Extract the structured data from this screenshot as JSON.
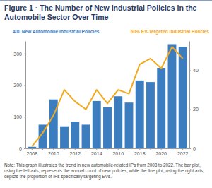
{
  "chart_data": {
    "type": "bar",
    "title": "Figure 1 · The Number of New Industrial Policies in the Automobile Sector Over Time",
    "note": "Note: This graph illustrates the trend in new automobile-related IPs from 2008 to 2022. The bar plot, using the left axis, represents the annual count of new policies, while the line plot, using the right axis, depicts the proportion of IPs specifically targeting EVs.",
    "categories": [
      "2008",
      null,
      "2010",
      null,
      "2012",
      null,
      "2014",
      null,
      "2016",
      null,
      "2018",
      null,
      "2020",
      null,
      "2022"
    ],
    "series": [
      {
        "name": "400 New Automobile Industrial Policies",
        "type": "bar",
        "color": "#3b7dbf",
        "values": [
          5,
          75,
          155,
          70,
          85,
          75,
          150,
          130,
          165,
          145,
          215,
          210,
          255,
          330,
          322
        ]
      },
      {
        "name": "60% EV-Targeted Industrial Policies",
        "type": "line",
        "color": "#f2a91f",
        "axis": "y2",
        "values": [
          1,
          8,
          17,
          30,
          24,
          20,
          30,
          23,
          30,
          28,
          43,
          46,
          41,
          52,
          46
        ]
      }
    ],
    "ylim": [
      0,
      340
    ],
    "yticks": [
      0,
      100,
      200,
      300
    ],
    "y2lim": [
      0,
      55
    ],
    "y2ticks": [
      0,
      20,
      40
    ]
  }
}
